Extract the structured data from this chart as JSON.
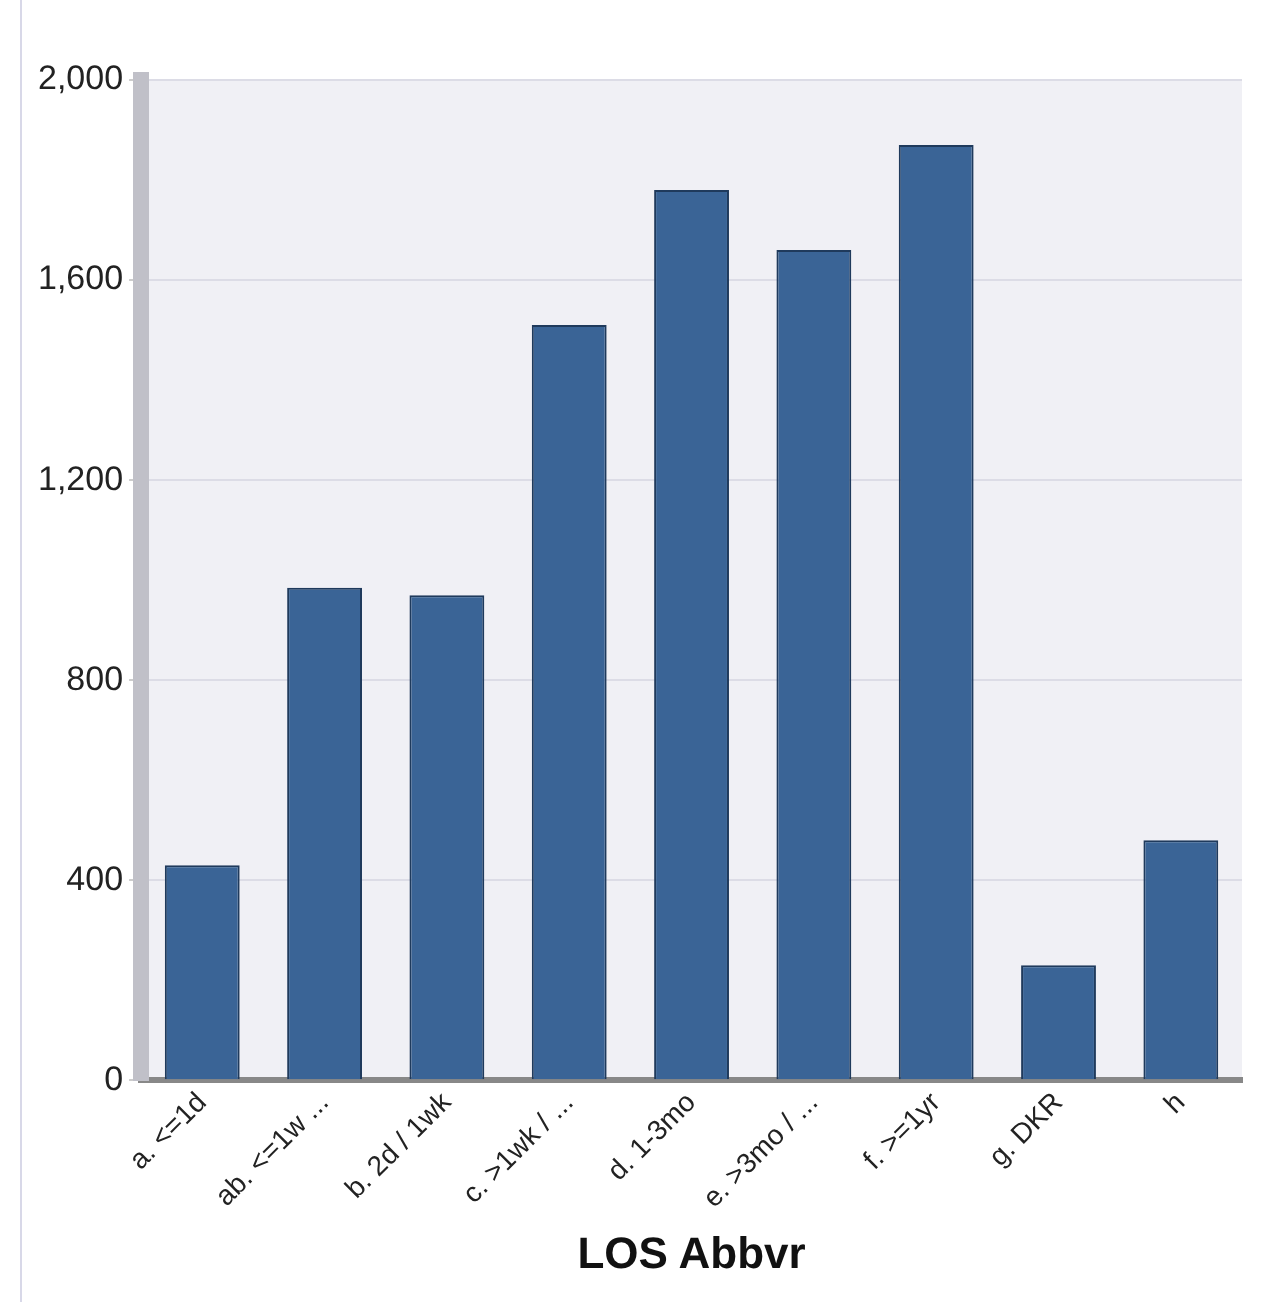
{
  "chart_data": {
    "type": "bar",
    "xlabel": "LOS Abbvr",
    "categories": [
      "a. <=1d",
      "ab. <=1w ...",
      "b. 2d / 1wk",
      "c. >1wk / ...",
      "d. 1-3mo",
      "e. >3mo / ...",
      "f. >=1yr",
      "g. DKR",
      "h"
    ],
    "values": [
      430,
      985,
      970,
      1510,
      1780,
      1660,
      1870,
      230,
      480
    ],
    "color": "#3a6496",
    "ylim": [
      0,
      2000
    ],
    "yticks": [
      {
        "value": 0,
        "label": "0"
      },
      {
        "value": 400,
        "label": "400"
      },
      {
        "value": 800,
        "label": "800"
      },
      {
        "value": 1200,
        "label": "1,200"
      },
      {
        "value": 1600,
        "label": "1,600"
      },
      {
        "value": 2000,
        "label": "2,000"
      }
    ],
    "grid": "y",
    "legend": false
  }
}
